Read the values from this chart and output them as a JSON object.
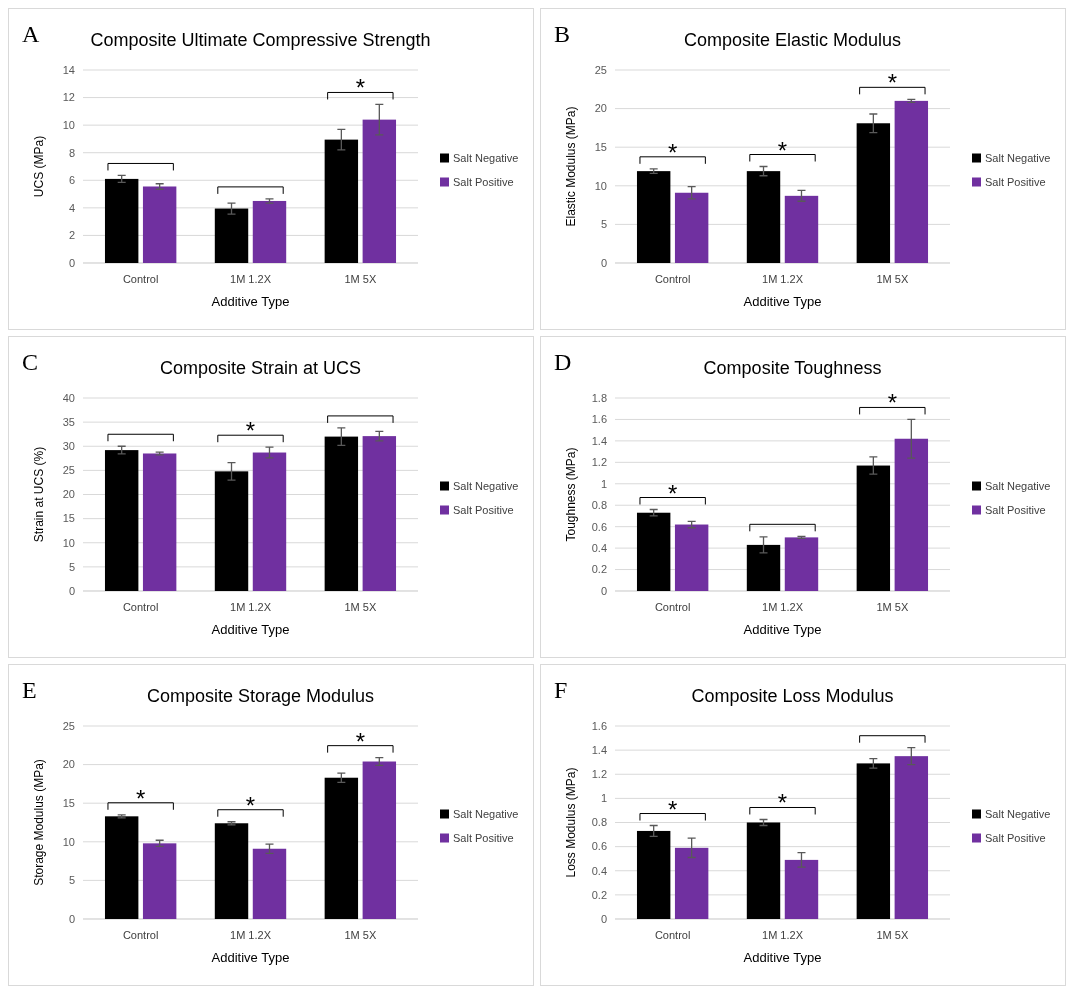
{
  "chart_data": [
    {
      "type": "bar",
      "title": "Composite Ultimate Compressive Strength",
      "xlabel": "Additive Type",
      "ylabel": "UCS (MPa)",
      "categories": [
        "Control",
        "1M 1.2X",
        "1M 5X"
      ],
      "series": [
        {
          "name": "Salt Negative",
          "color": "#000000",
          "values": [
            6.1,
            3.95,
            8.95
          ],
          "errors": [
            0.25,
            0.4,
            0.75
          ]
        },
        {
          "name": "Salt Positive",
          "color": "#7030a0",
          "values": [
            5.55,
            4.5,
            10.4
          ],
          "errors": [
            0.2,
            0.15,
            1.1
          ]
        }
      ],
      "ylim": [
        0,
        14
      ],
      "yticks": [
        0,
        2,
        4,
        6,
        8,
        10,
        12,
        14
      ],
      "grid": "y",
      "legend": "right",
      "annotations": [
        "A",
        {
          "text": "*",
          "x": "1M 5X",
          "y": 10.4
        }
      ]
    },
    {
      "type": "bar",
      "title": "Composite Elastic Modulus",
      "xlabel": "Additive Type",
      "ylabel": "Elastic Modulus (MPa)",
      "categories": [
        "Control",
        "1M 1.2X",
        "1M 5X"
      ],
      "series": [
        {
          "name": "Salt Negative",
          "color": "#000000",
          "values": [
            11.9,
            11.9,
            18.1
          ],
          "errors": [
            0.3,
            0.6,
            1.2
          ]
        },
        {
          "name": "Salt Positive",
          "color": "#7030a0",
          "values": [
            9.1,
            8.7,
            21
          ],
          "errors": [
            0.8,
            0.7,
            0.2
          ]
        }
      ],
      "ylim": [
        0,
        25
      ],
      "yticks": [
        0,
        5,
        10,
        15,
        20,
        25
      ],
      "grid": "y",
      "legend": "right",
      "annotations": [
        "B",
        {
          "text": "*",
          "x": "Control",
          "y": 11.9
        },
        {
          "text": "*",
          "x": "1M 1.2X",
          "y": 11.9
        },
        {
          "text": "*",
          "x": "1M 5X",
          "y": 21
        }
      ]
    },
    {
      "type": "bar",
      "title": "Composite Strain at UCS",
      "xlabel": "Additive Type",
      "ylabel": "Strain at UCS (%)",
      "categories": [
        "Control",
        "1M 1.2X",
        "1M 5X"
      ],
      "series": [
        {
          "name": "Salt Negative",
          "color": "#000000",
          "values": [
            29.2,
            24.8,
            32
          ],
          "errors": [
            0.8,
            1.8,
            1.8
          ]
        },
        {
          "name": "Salt Positive",
          "color": "#7030a0",
          "values": [
            28.5,
            28.7,
            32.1
          ],
          "errors": [
            0.3,
            1.1,
            1
          ]
        }
      ],
      "ylim": [
        0,
        40
      ],
      "yticks": [
        0,
        5,
        10,
        15,
        20,
        25,
        30,
        35,
        40
      ],
      "grid": "y",
      "legend": "right",
      "annotations": [
        "C",
        {
          "text": "*",
          "x": "1M 1.2X",
          "y": 28.7
        }
      ]
    },
    {
      "type": "bar",
      "title": "Composite Toughness",
      "xlabel": "Additive Type",
      "ylabel": "Toughness (MPa)",
      "categories": [
        "Control",
        "1M 1.2X",
        "1M 5X"
      ],
      "series": [
        {
          "name": "Salt Negative",
          "color": "#000000",
          "values": [
            0.73,
            0.43,
            1.17
          ],
          "errors": [
            0.03,
            0.075,
            0.08
          ]
        },
        {
          "name": "Salt Positive",
          "color": "#7030a0",
          "values": [
            0.62,
            0.5,
            1.42
          ],
          "errors": [
            0.03,
            0.01,
            0.18
          ]
        }
      ],
      "ylim": [
        0,
        1.8
      ],
      "yticks": [
        0,
        0.2,
        0.4,
        0.6,
        0.8,
        1,
        1.2,
        1.4,
        1.6,
        1.8
      ],
      "grid": "y",
      "legend": "right",
      "annotations": [
        "D",
        {
          "text": "*",
          "x": "Control",
          "y": 0.73
        },
        {
          "text": "*",
          "x": "1M 5X",
          "y": 1.42
        }
      ]
    },
    {
      "type": "bar",
      "title": "Composite Storage Modulus",
      "xlabel": "Additive Type",
      "ylabel": "Storage Modulus (MPa)",
      "categories": [
        "Control",
        "1M 1.2X",
        "1M 5X"
      ],
      "series": [
        {
          "name": "Salt Negative",
          "color": "#000000",
          "values": [
            13.3,
            12.4,
            18.3
          ],
          "errors": [
            0.2,
            0.2,
            0.6
          ]
        },
        {
          "name": "Salt Positive",
          "color": "#7030a0",
          "values": [
            9.8,
            9.1,
            20.4
          ],
          "errors": [
            0.4,
            0.6,
            0.5
          ]
        }
      ],
      "ylim": [
        0,
        25
      ],
      "yticks": [
        0,
        5,
        10,
        15,
        20,
        25
      ],
      "grid": "y",
      "legend": "right",
      "annotations": [
        "E",
        {
          "text": "*",
          "x": "Control",
          "y": 13.3
        },
        {
          "text": "*",
          "x": "1M 1.2X",
          "y": 12.4
        },
        {
          "text": "*",
          "x": "1M 5X",
          "y": 20.4
        }
      ]
    },
    {
      "type": "bar",
      "title": "Composite Loss Modulus",
      "xlabel": "Additive Type",
      "ylabel": "Loss Modulus (MPa)",
      "categories": [
        "Control",
        "1M 1.2X",
        "1M 5X"
      ],
      "series": [
        {
          "name": "Salt Negative",
          "color": "#000000",
          "values": [
            0.73,
            0.8,
            1.29
          ],
          "errors": [
            0.045,
            0.025,
            0.04
          ]
        },
        {
          "name": "Salt Positive",
          "color": "#7030a0",
          "values": [
            0.59,
            0.49,
            1.35
          ],
          "errors": [
            0.08,
            0.06,
            0.07
          ]
        }
      ],
      "ylim": [
        0,
        1.6
      ],
      "yticks": [
        0,
        0.2,
        0.4,
        0.6,
        0.8,
        1,
        1.2,
        1.4,
        1.6
      ],
      "grid": "y",
      "legend": "right",
      "annotations": [
        "F",
        {
          "text": "*",
          "x": "Control",
          "y": 0.73
        },
        {
          "text": "*",
          "x": "1M 1.2X",
          "y": 0.8
        }
      ]
    }
  ]
}
